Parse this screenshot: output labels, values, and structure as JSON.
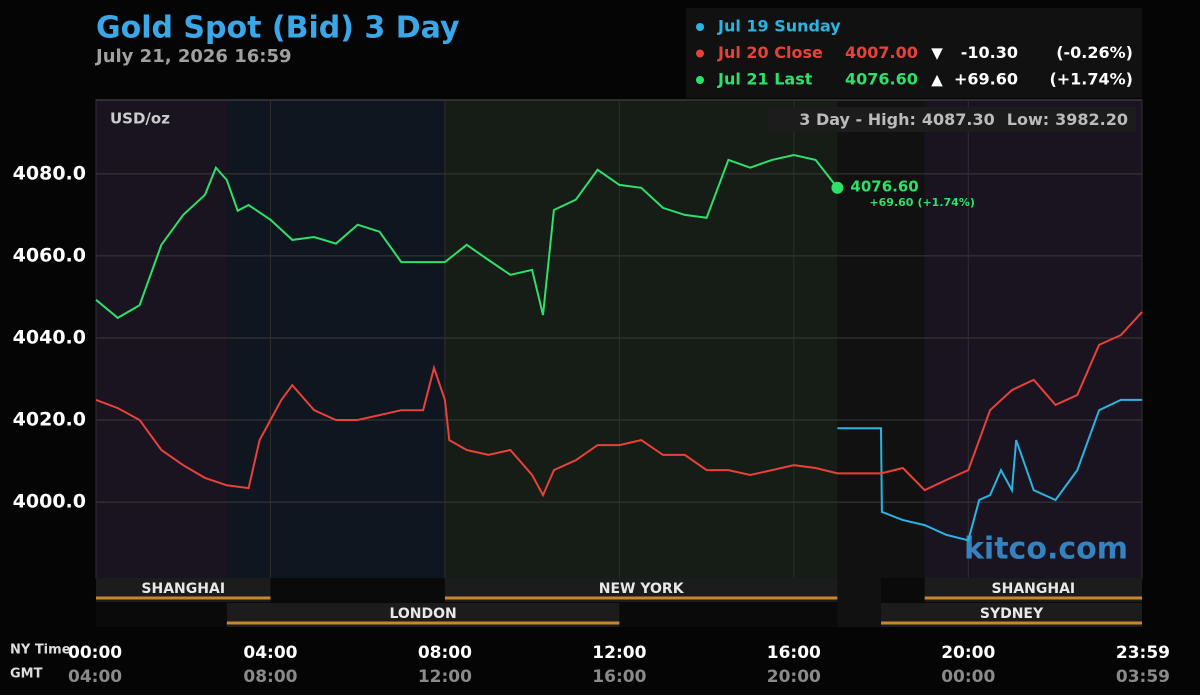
{
  "chart_data": {
    "type": "line",
    "title": "Gold Spot (Bid) 3 Day",
    "subtitle": "July 21, 2026 16:59",
    "unit_label": "USD/oz",
    "watermark": "kitco.com",
    "stats": {
      "text": "3 Day - High:",
      "high": 4087.3,
      "high_label": "4087.30",
      "low_text": "Low:",
      "low": 3982.2,
      "low_label": "3982.20"
    },
    "x_axis_label": "NY Time",
    "x2_axis_label": "GMT",
    "xlim": [
      0,
      23.9833
    ],
    "xticks": [
      {
        "value": 0,
        "label": "00:00"
      },
      {
        "value": 4,
        "label": "04:00"
      },
      {
        "value": 8,
        "label": "08:00"
      },
      {
        "value": 12,
        "label": "12:00"
      },
      {
        "value": 16,
        "label": "16:00"
      },
      {
        "value": 20,
        "label": "20:00"
      },
      {
        "value": 23.9833,
        "label": "23:59"
      }
    ],
    "x2tick_labels": [
      "04:00",
      "08:00",
      "12:00",
      "16:00",
      "20:00",
      "00:00",
      "03:59"
    ],
    "ylim": [
      3981.5,
      4098
    ],
    "yticks": [
      {
        "value": 4000,
        "label": "4000.0"
      },
      {
        "value": 4020,
        "label": "4020.0"
      },
      {
        "value": 4040,
        "label": "4040.0"
      },
      {
        "value": 4060,
        "label": "4060.0"
      },
      {
        "value": 4080,
        "label": "4080.0"
      }
    ],
    "grid": true,
    "sessions": [
      {
        "name": "SHANGHAI",
        "start": 0,
        "end": 4,
        "row": "top",
        "tint": "#1a1420"
      },
      {
        "name": "LONDON",
        "start": 3,
        "end": 12,
        "row": "bottom",
        "tint": "#10161f"
      },
      {
        "name": "NEW YORK",
        "start": 8,
        "end": 17,
        "row": "top",
        "tint": "#161c16"
      },
      {
        "name": "SYDNEY",
        "start": 18,
        "end": 23.9833,
        "row": "bottom",
        "tint": "#111111"
      },
      {
        "name": "SHANGHAI",
        "start": 19,
        "end": 23.9833,
        "row": "top",
        "tint": "#1a1420"
      }
    ],
    "closed": [
      17,
      18
    ],
    "series": [
      {
        "name": "Jul 19 Sunday",
        "color": "#2ab4e0",
        "x": [
          17,
          18,
          18.02,
          18.5,
          19,
          19.5,
          20,
          20.25,
          20.5,
          20.75,
          21,
          21.1,
          21.5,
          22,
          22.5,
          23,
          23.5,
          23.9833
        ],
        "values": [
          4018,
          4018,
          3997.6,
          3995.6,
          3994.4,
          3992,
          3990.7,
          4000.5,
          4001.7,
          4007.8,
          4002.9,
          4015.1,
          4002.9,
          4000.5,
          4007.8,
          4022.4,
          4024.9,
          4024.9
        ]
      },
      {
        "name": "Jul 20 Close",
        "color": "#e8413a",
        "last": 4007,
        "last_label": "4007.00",
        "arrow": "▼",
        "change": -10.3,
        "change_label": "-10.30",
        "change_pct": -0.26,
        "change_pct_label": "(-0.26%)",
        "x": [
          0,
          0.5,
          1,
          1.5,
          2,
          2.5,
          3,
          3.5,
          3.75,
          4,
          4.25,
          4.5,
          5,
          5.5,
          6,
          6.5,
          7,
          7.5,
          7.75,
          8,
          8.1,
          8.5,
          9,
          9.5,
          10,
          10.25,
          10.5,
          11,
          11.5,
          12,
          12.5,
          13,
          13.5,
          14,
          14.5,
          15,
          15.5,
          16,
          16.5,
          17,
          18,
          18.5,
          19,
          19.5,
          20,
          20.5,
          21,
          21.5,
          22,
          22.5,
          23,
          23.5,
          23.9833
        ],
        "values": [
          4024.9,
          4022.9,
          4020,
          4012.7,
          4009,
          4005.9,
          4004.1,
          4003.4,
          4015.1,
          4020,
          4024.9,
          4028.5,
          4022.4,
          4020,
          4020,
          4021.2,
          4022.4,
          4022.4,
          4032.7,
          4024.9,
          4015.1,
          4012.7,
          4011.5,
          4012.7,
          4006.6,
          4001.7,
          4007.8,
          4010.2,
          4013.9,
          4013.9,
          4015.1,
          4011.5,
          4011.5,
          4007.8,
          4007.8,
          4006.6,
          4007.8,
          4009,
          4008.3,
          4007,
          4007,
          4008.3,
          4002.9,
          4005.4,
          4007.8,
          4022.4,
          4027.3,
          4029.8,
          4023.7,
          4026.1,
          4038.3,
          4040.7,
          4046.3
        ]
      },
      {
        "name": "Jul 21 Last",
        "color": "#2ee06a",
        "last": 4076.6,
        "last_label": "4076.60",
        "arrow": "▲",
        "change": 69.6,
        "change_label": "+69.60",
        "change_pct": 1.74,
        "change_pct_label": "(+1.74%)",
        "x": [
          0,
          0.5,
          1,
          1.5,
          2,
          2.5,
          2.75,
          3,
          3.25,
          3.5,
          4,
          4.5,
          5,
          5.5,
          6,
          6.5,
          7,
          7.5,
          8,
          8.5,
          9,
          9.5,
          10,
          10.25,
          10.5,
          11,
          11.5,
          12,
          12.5,
          13,
          13.5,
          14,
          14.5,
          15,
          15.5,
          16,
          16.5,
          17
        ],
        "values": [
          4049.3,
          4044.9,
          4048,
          4062.7,
          4070,
          4074.9,
          4081.5,
          4078.5,
          4071,
          4072.4,
          4068.8,
          4063.9,
          4064.6,
          4063,
          4067.6,
          4065.9,
          4058.5,
          4058.5,
          4058.5,
          4062.7,
          4059,
          4055.4,
          4056.6,
          4045.6,
          4071.2,
          4073.7,
          4081,
          4077.3,
          4076.6,
          4071.7,
          4070,
          4069.3,
          4083.4,
          4081.5,
          4083.4,
          4084.6,
          4083.4,
          4076.6
        ]
      }
    ]
  }
}
